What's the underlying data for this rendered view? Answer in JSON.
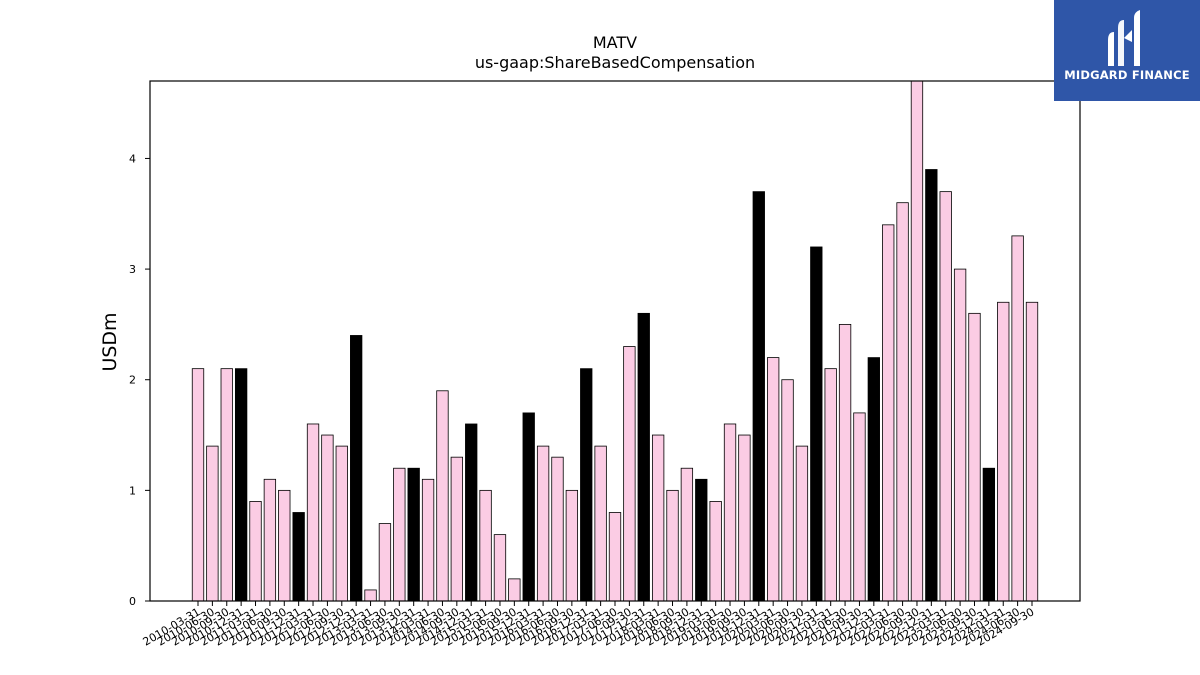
{
  "logo": {
    "text": "MIDGARD FINANCE"
  },
  "colors": {
    "pink": "#fbcce4",
    "black": "#000000",
    "logo_bg": "#2f56a8"
  },
  "chart_data": {
    "type": "bar",
    "title": "MATV",
    "subtitle": "us-gaap:ShareBasedCompensation",
    "xlabel": "",
    "ylabel": "USDm",
    "ylim": [
      0,
      4.7
    ],
    "yticks": [
      0,
      1,
      2,
      3,
      4
    ],
    "categories": [
      "2010-03-31",
      "2010-06-30",
      "2010-09-30",
      "2010-12-31",
      "2011-03-31",
      "2011-06-30",
      "2011-09-30",
      "2011-12-31",
      "2012-03-31",
      "2012-06-30",
      "2012-09-30",
      "2012-12-31",
      "2013-03-31",
      "2013-06-30",
      "2013-09-30",
      "2013-12-31",
      "2014-03-31",
      "2014-06-30",
      "2014-09-30",
      "2014-12-31",
      "2015-03-31",
      "2015-06-30",
      "2015-09-30",
      "2015-12-31",
      "2016-03-31",
      "2016-06-30",
      "2016-09-30",
      "2016-12-31",
      "2017-03-31",
      "2017-06-30",
      "2017-09-30",
      "2017-12-31",
      "2018-03-31",
      "2018-06-30",
      "2018-09-30",
      "2018-12-31",
      "2019-03-31",
      "2019-06-30",
      "2019-09-30",
      "2019-12-31",
      "2020-03-31",
      "2020-06-30",
      "2020-09-30",
      "2020-12-31",
      "2021-03-31",
      "2021-06-30",
      "2021-09-30",
      "2021-12-31",
      "2022-03-31",
      "2022-06-30",
      "2022-09-30",
      "2022-12-31",
      "2023-03-31",
      "2023-06-30",
      "2023-09-30",
      "2023-12-31",
      "2024-03-31",
      "2024-06-30",
      "2024-09-30"
    ],
    "values": [
      2.1,
      1.4,
      2.1,
      2.1,
      0.9,
      1.1,
      1.0,
      0.8,
      1.6,
      1.5,
      1.4,
      2.4,
      0.1,
      0.7,
      1.2,
      1.2,
      1.1,
      1.9,
      1.3,
      1.6,
      1.0,
      0.6,
      0.2,
      1.7,
      1.4,
      1.3,
      1.0,
      2.1,
      1.4,
      0.8,
      2.3,
      2.6,
      1.5,
      1.0,
      1.2,
      1.1,
      0.9,
      1.6,
      1.5,
      3.7,
      2.2,
      2.0,
      1.4,
      3.2,
      2.1,
      2.5,
      1.7,
      2.2,
      3.4,
      3.6,
      4.7,
      3.9,
      3.7,
      3.0,
      2.6,
      1.2,
      2.7,
      3.3,
      2.7
    ],
    "highlight_categories": [
      "2010-12-31",
      "2011-12-31",
      "2012-12-31",
      "2013-12-31",
      "2014-12-31",
      "2015-12-31",
      "2016-12-31",
      "2017-12-31",
      "2018-12-31",
      "2019-12-31",
      "2020-12-31",
      "2021-12-31",
      "2022-12-31",
      "2023-12-31"
    ],
    "grid": false,
    "legend": "none"
  }
}
